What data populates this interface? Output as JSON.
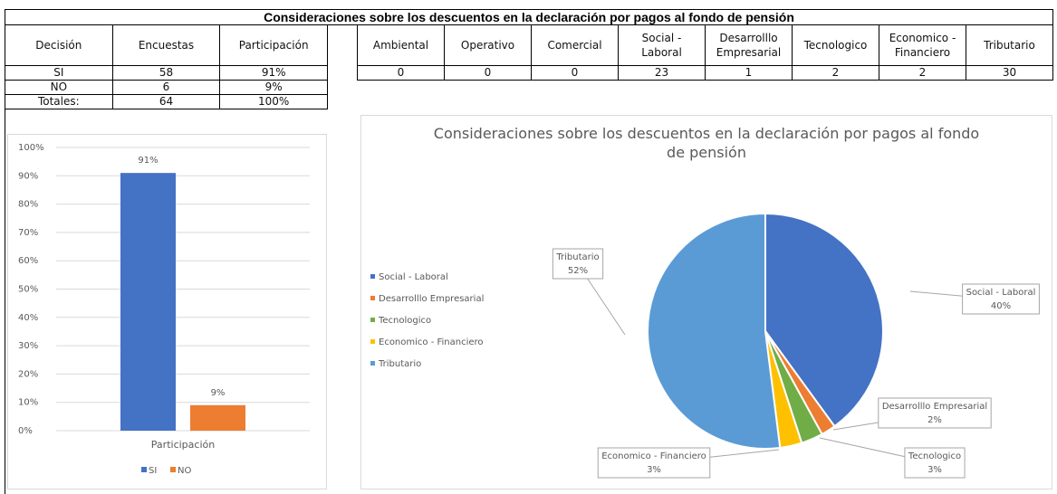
{
  "title": "Consideraciones sobre los descuentos en la declaración por pagos al fondo de pensión",
  "table_left": {
    "header": [
      "Decisión",
      "Encuestas",
      "Participación"
    ],
    "rows": [
      [
        "SI",
        58,
        "91%"
      ],
      [
        "NO",
        6,
        "9%"
      ],
      [
        "Totales:",
        64,
        "100%"
      ]
    ]
  },
  "table_right": {
    "header": [
      "Ambiental",
      "Operativo",
      "Comercial",
      "Social - Laboral",
      "Desarrolllo Empresarial",
      "Tecnologico",
      "Economico - Financiero",
      "Tributario"
    ],
    "rows": [
      [
        0,
        0,
        0,
        23,
        1,
        2,
        2,
        30
      ]
    ]
  },
  "chart_data": [
    {
      "type": "bar",
      "categories": [
        "Participación"
      ],
      "series": [
        {
          "name": "SI",
          "color": "#4472c4",
          "values": [
            91
          ],
          "value_labels": [
            "91%"
          ]
        },
        {
          "name": "NO",
          "color": "#ed7d31",
          "values": [
            9
          ],
          "value_labels": [
            "9%"
          ]
        }
      ],
      "ylim": [
        0,
        100
      ],
      "yticks": [
        {
          "value": 0,
          "label": "0%"
        },
        {
          "value": 10,
          "label": "10%"
        },
        {
          "value": 20,
          "label": "20%"
        },
        {
          "value": 30,
          "label": "30%"
        },
        {
          "value": 40,
          "label": "40%"
        },
        {
          "value": 50,
          "label": "50%"
        },
        {
          "value": 60,
          "label": "60%"
        },
        {
          "value": 70,
          "label": "70%"
        },
        {
          "value": 80,
          "label": "80%"
        },
        {
          "value": 90,
          "label": "90%"
        },
        {
          "value": 100,
          "label": "100%"
        }
      ],
      "grid": true,
      "legend": "bottom"
    },
    {
      "type": "pie",
      "title": "Consideraciones sobre los descuentos en la declaración por pagos al fondo de pensión",
      "categories": [
        "Social - Laboral",
        "Desarrolllo Empresarial",
        "Tecnologico",
        "Economico - Financiero",
        "Tributario"
      ],
      "values": [
        40,
        2,
        3,
        3,
        52
      ],
      "value_labels": [
        "40%",
        "2%",
        "3%",
        "3%",
        "52%"
      ],
      "colors": [
        "#4472c4",
        "#ed7d31",
        "#70ad47",
        "#ffc000",
        "#5b9bd5"
      ],
      "legend": "left"
    }
  ]
}
